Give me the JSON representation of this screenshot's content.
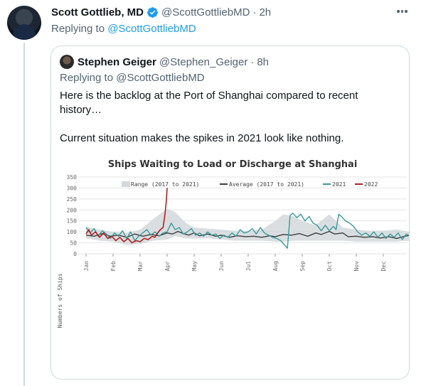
{
  "tweet": {
    "author_name": "Scott Gottlieb, MD",
    "handle": "@ScottGottliebMD",
    "time": "2h",
    "replying_prefix": "Replying to",
    "replying_handle": "@ScottGottliebMD"
  },
  "quoted": {
    "author_name": "Stephen Geiger",
    "handle": "@Stephen_Geiger",
    "time": "8h",
    "replying_text": "Replying to @ScottGottliebMD",
    "text_line1": "Here is the backlog at the Port of Shanghai compared to recent history…",
    "text_line2": "Current situation makes the spikes in 2021 look like nothing."
  },
  "colors": {
    "accent": "#1d9bf0",
    "muted": "#536471",
    "range": "#d3d8dc",
    "average": "#3d3d3d",
    "s2021": "#3a9a9a",
    "s2022": "#b02020"
  },
  "icons": [
    "verified-badge-icon",
    "more-options-icon"
  ],
  "chart_data": {
    "type": "line",
    "title": "Ships Waiting to Load or Discharge at Shanghai",
    "ylabel": "Numbers of Ships",
    "ylim": [
      0,
      350
    ],
    "yticks": [
      "0",
      "50",
      "100",
      "150",
      "200",
      "250",
      "300",
      "350"
    ],
    "months": [
      "Jan",
      "Feb",
      "Mar",
      "Apr",
      "May",
      "Jun",
      "Jul",
      "Aug",
      "Sep",
      "Oct",
      "Nov",
      "Dec"
    ],
    "legend": [
      "Range (2017 to 2021)",
      "Average (2017 to 2021)",
      "2021",
      "2022"
    ],
    "legend_position": "top",
    "grid": true,
    "range": [
      [
        0,
        70,
        125
      ],
      [
        0.5,
        60,
        110
      ],
      [
        1,
        55,
        100
      ],
      [
        1.5,
        40,
        95
      ],
      [
        2,
        45,
        110
      ],
      [
        2.5,
        60,
        160
      ],
      [
        3,
        65,
        205
      ],
      [
        3.3,
        80,
        190
      ],
      [
        3.7,
        70,
        140
      ],
      [
        4,
        70,
        120
      ],
      [
        4.5,
        70,
        115
      ],
      [
        5,
        65,
        110
      ],
      [
        5.5,
        60,
        105
      ],
      [
        6,
        60,
        105
      ],
      [
        6.5,
        60,
        110
      ],
      [
        7,
        55,
        150
      ],
      [
        7.3,
        55,
        180
      ],
      [
        7.7,
        60,
        170
      ],
      [
        8,
        60,
        150
      ],
      [
        8.5,
        60,
        130
      ],
      [
        9,
        60,
        180
      ],
      [
        9.5,
        60,
        120
      ],
      [
        10,
        55,
        110
      ],
      [
        10.5,
        55,
        105
      ],
      [
        11,
        55,
        105
      ],
      [
        11.5,
        55,
        110
      ],
      [
        12,
        60,
        100
      ]
    ],
    "average": [
      [
        0,
        85
      ],
      [
        0.3,
        80
      ],
      [
        0.6,
        92
      ],
      [
        0.9,
        80
      ],
      [
        1.2,
        85
      ],
      [
        1.5,
        75
      ],
      [
        1.8,
        90
      ],
      [
        2.1,
        80
      ],
      [
        2.4,
        88
      ],
      [
        2.7,
        82
      ],
      [
        3,
        95
      ],
      [
        3.2,
        90
      ],
      [
        3.4,
        102
      ],
      [
        3.6,
        92
      ],
      [
        3.8,
        85
      ],
      [
        4,
        95
      ],
      [
        4.2,
        82
      ],
      [
        4.5,
        90
      ],
      [
        4.8,
        80
      ],
      [
        5,
        85
      ],
      [
        5.3,
        75
      ],
      [
        5.6,
        82
      ],
      [
        5.9,
        78
      ],
      [
        6.2,
        80
      ],
      [
        6.5,
        75
      ],
      [
        6.8,
        82
      ],
      [
        7,
        78
      ],
      [
        7.3,
        88
      ],
      [
        7.6,
        85
      ],
      [
        7.9,
        92
      ],
      [
        8.2,
        80
      ],
      [
        8.5,
        95
      ],
      [
        8.7,
        88
      ],
      [
        9,
        102
      ],
      [
        9.2,
        90
      ],
      [
        9.5,
        95
      ],
      [
        9.7,
        78
      ],
      [
        10,
        80
      ],
      [
        10.3,
        75
      ],
      [
        10.6,
        78
      ],
      [
        10.9,
        72
      ],
      [
        11.2,
        78
      ],
      [
        11.5,
        70
      ],
      [
        11.8,
        80
      ],
      [
        12,
        85
      ]
    ],
    "s2021": [
      [
        0,
        120
      ],
      [
        0.15,
        95
      ],
      [
        0.3,
        115
      ],
      [
        0.45,
        80
      ],
      [
        0.6,
        105
      ],
      [
        0.75,
        90
      ],
      [
        0.9,
        70
      ],
      [
        1.05,
        95
      ],
      [
        1.2,
        80
      ],
      [
        1.35,
        105
      ],
      [
        1.5,
        70
      ],
      [
        1.65,
        100
      ],
      [
        1.8,
        60
      ],
      [
        1.95,
        80
      ],
      [
        2.1,
        95
      ],
      [
        2.25,
        110
      ],
      [
        2.4,
        85
      ],
      [
        2.55,
        100
      ],
      [
        2.7,
        80
      ],
      [
        2.85,
        95
      ],
      [
        3,
        100
      ],
      [
        3.15,
        140
      ],
      [
        3.3,
        110
      ],
      [
        3.45,
        120
      ],
      [
        3.6,
        90
      ],
      [
        3.75,
        100
      ],
      [
        3.9,
        115
      ],
      [
        4.05,
        85
      ],
      [
        4.2,
        95
      ],
      [
        4.35,
        80
      ],
      [
        4.5,
        100
      ],
      [
        4.65,
        85
      ],
      [
        4.8,
        90
      ],
      [
        4.95,
        70
      ],
      [
        5.1,
        85
      ],
      [
        5.25,
        75
      ],
      [
        5.4,
        95
      ],
      [
        5.55,
        80
      ],
      [
        5.7,
        110
      ],
      [
        5.85,
        95
      ],
      [
        6,
        100
      ],
      [
        6.15,
        115
      ],
      [
        6.3,
        90
      ],
      [
        6.45,
        120
      ],
      [
        6.6,
        95
      ],
      [
        6.75,
        85
      ],
      [
        6.9,
        75
      ],
      [
        7.05,
        70
      ],
      [
        7.2,
        60
      ],
      [
        7.35,
        40
      ],
      [
        7.45,
        25
      ],
      [
        7.55,
        175
      ],
      [
        7.65,
        185
      ],
      [
        7.8,
        165
      ],
      [
        7.95,
        180
      ],
      [
        8.1,
        150
      ],
      [
        8.25,
        170
      ],
      [
        8.4,
        140
      ],
      [
        8.55,
        130
      ],
      [
        8.7,
        105
      ],
      [
        8.85,
        130
      ],
      [
        9,
        105
      ],
      [
        9.15,
        125
      ],
      [
        9.25,
        110
      ],
      [
        9.35,
        180
      ],
      [
        9.45,
        170
      ],
      [
        9.6,
        150
      ],
      [
        9.75,
        140
      ],
      [
        9.9,
        125
      ],
      [
        10.05,
        100
      ],
      [
        10.2,
        85
      ],
      [
        10.35,
        95
      ],
      [
        10.5,
        80
      ],
      [
        10.65,
        100
      ],
      [
        10.8,
        75
      ],
      [
        10.95,
        95
      ],
      [
        11.1,
        70
      ],
      [
        11.25,
        90
      ],
      [
        11.4,
        75
      ],
      [
        11.55,
        95
      ],
      [
        11.7,
        65
      ],
      [
        11.85,
        90
      ],
      [
        12,
        80
      ]
    ],
    "s2022": [
      [
        0,
        90
      ],
      [
        0.1,
        110
      ],
      [
        0.2,
        85
      ],
      [
        0.35,
        100
      ],
      [
        0.5,
        75
      ],
      [
        0.65,
        95
      ],
      [
        0.8,
        70
      ],
      [
        0.95,
        80
      ],
      [
        1.1,
        60
      ],
      [
        1.25,
        75
      ],
      [
        1.4,
        55
      ],
      [
        1.55,
        70
      ],
      [
        1.7,
        50
      ],
      [
        1.85,
        60
      ],
      [
        2,
        55
      ],
      [
        2.15,
        70
      ],
      [
        2.3,
        65
      ],
      [
        2.45,
        80
      ],
      [
        2.55,
        75
      ],
      [
        2.65,
        95
      ],
      [
        2.75,
        110
      ],
      [
        2.85,
        120
      ],
      [
        2.92,
        180
      ],
      [
        2.97,
        240
      ],
      [
        3,
        300
      ]
    ]
  }
}
